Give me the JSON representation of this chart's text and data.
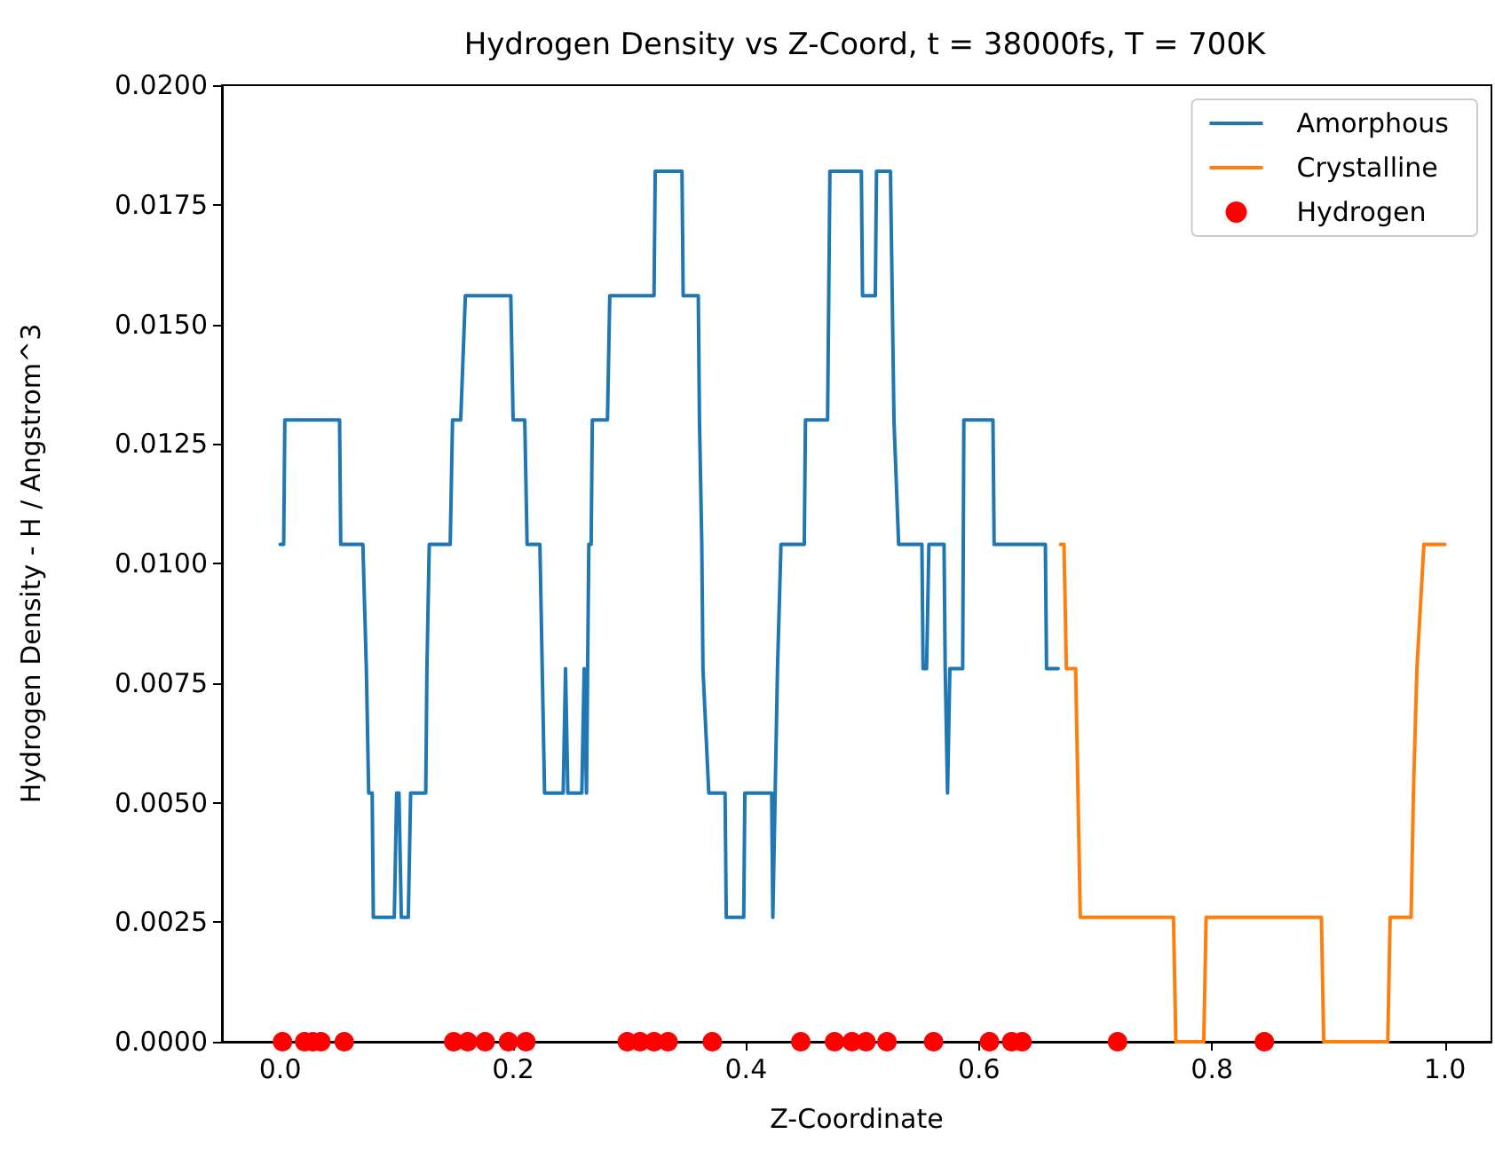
{
  "chart_data": {
    "type": "line",
    "title": "Hydrogen Density vs Z-Coord, t = 38000fs, T = 700K",
    "xlabel": "Z-Coordinate",
    "ylabel": "Hydrogen Density - H / Angstrom^3",
    "xlim": [
      -0.05,
      1.04
    ],
    "xticks": [
      {
        "value": 0,
        "label": "0.0"
      },
      {
        "value": 0.2,
        "label": "0.2"
      },
      {
        "value": 0.4,
        "label": "0.4"
      },
      {
        "value": 0.6,
        "label": "0.6"
      },
      {
        "value": 0.8,
        "label": "0.8"
      },
      {
        "value": 1,
        "label": "1.0"
      }
    ],
    "ylim": [
      0,
      0.02
    ],
    "yticks": [
      {
        "value": 0,
        "label": "0.0000"
      },
      {
        "value": 0.0025,
        "label": "0.0025"
      },
      {
        "value": 0.005,
        "label": "0.0050"
      },
      {
        "value": 0.0075,
        "label": "0.0075"
      },
      {
        "value": 0.01,
        "label": "0.0100"
      },
      {
        "value": 0.0125,
        "label": "0.0125"
      },
      {
        "value": 0.015,
        "label": "0.0150"
      },
      {
        "value": 0.0175,
        "label": "0.0175"
      },
      {
        "value": 0.02,
        "label": "0.0200"
      }
    ],
    "grid": false,
    "legend": "top right",
    "line_style": "solid",
    "series": [
      {
        "name": "Amorphous",
        "color": "#1f77b4",
        "x": [
          0.0,
          0.003,
          0.004,
          0.051,
          0.052,
          0.071,
          0.074,
          0.076,
          0.079,
          0.08,
          0.098,
          0.1,
          0.102,
          0.104,
          0.11,
          0.112,
          0.125,
          0.126,
          0.128,
          0.146,
          0.148,
          0.155,
          0.159,
          0.198,
          0.2,
          0.21,
          0.212,
          0.223,
          0.225,
          0.227,
          0.243,
          0.245,
          0.247,
          0.259,
          0.261,
          0.263,
          0.265,
          0.267,
          0.268,
          0.281,
          0.283,
          0.321,
          0.322,
          0.345,
          0.346,
          0.359,
          0.36,
          0.362,
          0.363,
          0.368,
          0.382,
          0.383,
          0.398,
          0.399,
          0.422,
          0.423,
          0.425,
          0.427,
          0.43,
          0.45,
          0.451,
          0.47,
          0.471,
          0.472,
          0.499,
          0.5,
          0.511,
          0.512,
          0.524,
          0.527,
          0.531,
          0.551,
          0.552,
          0.555,
          0.557,
          0.57,
          0.571,
          0.573,
          0.575,
          0.586,
          0.587,
          0.612,
          0.613,
          0.657,
          0.658,
          0.668
        ],
        "values": [
          0.0104,
          0.0104,
          0.013,
          0.013,
          0.0104,
          0.0104,
          0.0078,
          0.0052,
          0.0052,
          0.0026,
          0.0026,
          0.0052,
          0.0052,
          0.0026,
          0.0026,
          0.0052,
          0.0052,
          0.0078,
          0.0104,
          0.0104,
          0.013,
          0.013,
          0.0156,
          0.0156,
          0.013,
          0.013,
          0.0104,
          0.0104,
          0.0078,
          0.0052,
          0.0052,
          0.0078,
          0.0052,
          0.0052,
          0.0078,
          0.0052,
          0.0104,
          0.0104,
          0.013,
          0.013,
          0.0156,
          0.0156,
          0.0182,
          0.0182,
          0.0156,
          0.0156,
          0.013,
          0.0104,
          0.0078,
          0.0052,
          0.0052,
          0.0026,
          0.0026,
          0.0052,
          0.0052,
          0.0026,
          0.0052,
          0.0078,
          0.0104,
          0.0104,
          0.013,
          0.013,
          0.0156,
          0.0182,
          0.0182,
          0.0156,
          0.0156,
          0.0182,
          0.0182,
          0.013,
          0.0104,
          0.0104,
          0.0078,
          0.0078,
          0.0104,
          0.0104,
          0.0078,
          0.0052,
          0.0078,
          0.0078,
          0.013,
          0.013,
          0.0104,
          0.0104,
          0.0078,
          0.0078
        ]
      },
      {
        "name": "Crystalline",
        "color": "#ff7f0e",
        "x": [
          0.67,
          0.673,
          0.675,
          0.683,
          0.687,
          0.767,
          0.769,
          0.793,
          0.795,
          0.894,
          0.896,
          0.951,
          0.953,
          0.971,
          0.973,
          0.976,
          0.982,
          1.0
        ],
        "values": [
          0.0104,
          0.0104,
          0.0078,
          0.0078,
          0.0026,
          0.0026,
          0,
          0,
          0.0026,
          0.0026,
          0,
          0,
          0.0026,
          0.0026,
          0.0052,
          0.0078,
          0.0104,
          0.0104
        ]
      },
      {
        "name": "Hydrogen",
        "type": "scatter",
        "color": "#ff0000",
        "marker": "circle",
        "x": [
          0.002,
          0.021,
          0.028,
          0.035,
          0.055,
          0.149,
          0.161,
          0.176,
          0.196,
          0.211,
          0.298,
          0.309,
          0.321,
          0.333,
          0.371,
          0.447,
          0.476,
          0.491,
          0.503,
          0.521,
          0.561,
          0.609,
          0.628,
          0.637,
          0.719,
          0.845
        ],
        "values": [
          0,
          0,
          0,
          0,
          0,
          0,
          0,
          0,
          0,
          0,
          0,
          0,
          0,
          0,
          0,
          0,
          0,
          0,
          0,
          0,
          0,
          0,
          0,
          0,
          0,
          0
        ]
      }
    ]
  }
}
